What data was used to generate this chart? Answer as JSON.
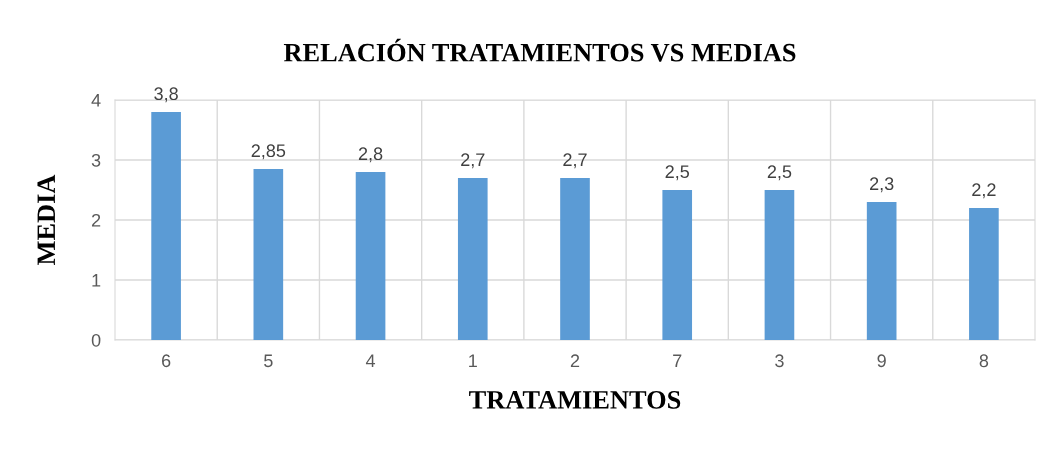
{
  "chart_data": {
    "type": "bar",
    "title": "RELACIÓN TRATAMIENTOS VS MEDIAS",
    "xlabel": "TRATAMIENTOS",
    "ylabel": "MEDIA",
    "categories": [
      "6",
      "5",
      "4",
      "1",
      "2",
      "7",
      "3",
      "9",
      "8"
    ],
    "values": [
      3.8,
      2.85,
      2.8,
      2.7,
      2.7,
      2.5,
      2.5,
      2.3,
      2.2
    ],
    "value_labels": [
      "3,8",
      "2,85",
      "2,8",
      "2,7",
      "2,7",
      "2,5",
      "2,5",
      "2,3",
      "2,2"
    ],
    "color": "#5b9bd5",
    "ylim": [
      0,
      4
    ],
    "yticks": [
      0,
      1,
      2,
      3,
      4
    ],
    "grid": true
  }
}
